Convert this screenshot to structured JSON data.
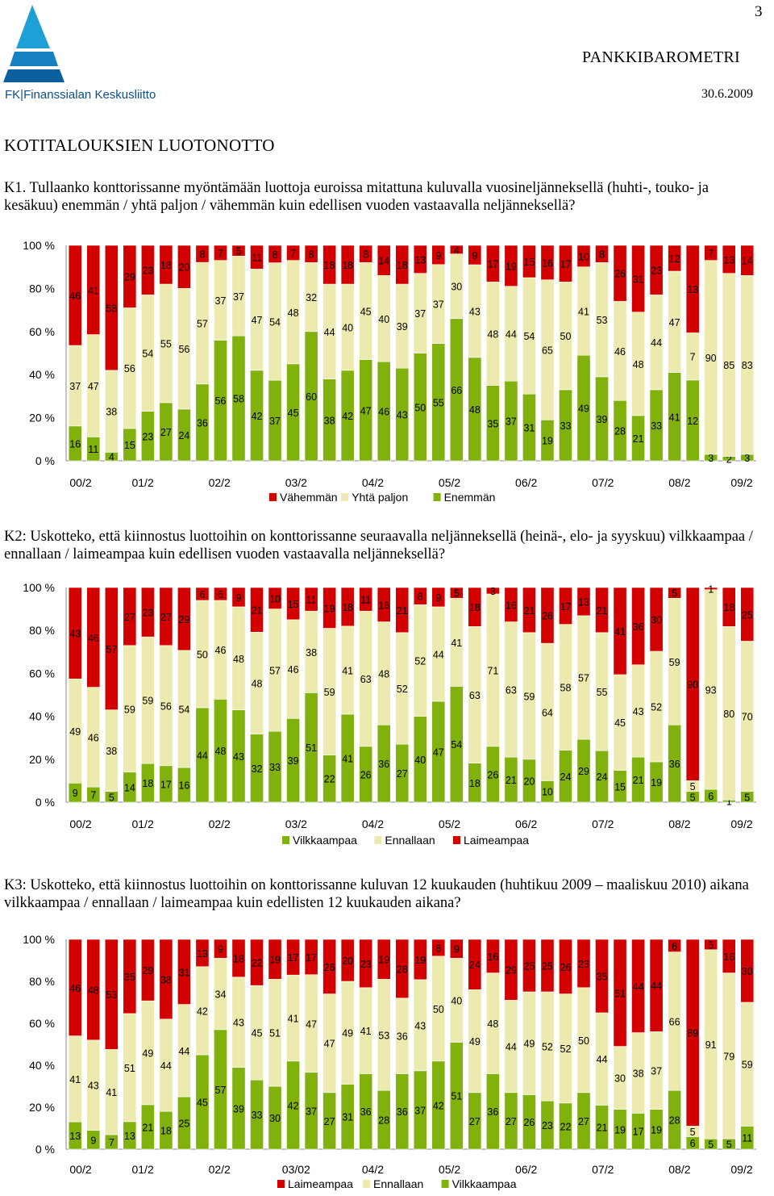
{
  "page": {
    "page_number": "3",
    "brand": "PANKKIBAROMETRI",
    "date": "30.6.2009",
    "logo_text": "FK|Finanssialan Keskusliitto",
    "heading": "KOTITALOUKSIEN LUOTONOTTO",
    "questions": [
      "K1. Tullaanko konttorissanne myöntämään luottoja euroissa mitattuna kuluvalla vuosineljänneksellä (huhti-, touko- ja kesäkuu) enemmän / yhtä paljon / vähemmän kuin edellisen vuoden vastaavalla neljänneksellä?",
      "K2: Uskotteko, että kiinnostus luottoihin on konttorissanne seuraavalla neljänneksellä (heinä-, elo- ja syyskuu) vilkkaampaa / ennallaan / laimeampaa kuin edellisen vuoden vastaavalla neljänneksellä?",
      "K3: Uskotteko, että kiinnostus luottoihin on konttorissanne kuluvan 12 kuukauden (huhtikuu 2009 – maaliskuu 2010) aikana vilkkaampaa / ennallaan / laimeampaa kuin edellisten 12 kuukauden aikana?"
    ]
  },
  "colors": {
    "green": "#80b10c",
    "yellow": "#edeab0",
    "red": "#d30000",
    "axis": "#888888"
  },
  "chart_data": [
    {
      "type": "bar",
      "stacked": true,
      "y_ticks": [
        "0 %",
        "20 %",
        "40 %",
        "60 %",
        "80 %",
        "100 %"
      ],
      "ylim": [
        0,
        100
      ],
      "x_tick_labels": [
        "00/2",
        "01/2",
        "02/2",
        "03/2",
        "04/2",
        "05/2",
        "06/2",
        "07/2",
        "08/2",
        "09/2"
      ],
      "legend": [
        {
          "name": "Vähemmän",
          "color": "red"
        },
        {
          "name": "Yhtä paljon",
          "color": "yellow"
        },
        {
          "name": "Enemmän",
          "color": "green"
        }
      ],
      "stack_order": [
        "green",
        "yellow",
        "red"
      ],
      "values": {
        "green": [
          16,
          11,
          4,
          15,
          23,
          27,
          24,
          36,
          56,
          58,
          42,
          37,
          45,
          60,
          38,
          42,
          47,
          46,
          43,
          50,
          55,
          66,
          48,
          35,
          37,
          31,
          19,
          33,
          49,
          39,
          28,
          21,
          33,
          41,
          12,
          3,
          2,
          3
        ],
        "yellow": [
          37,
          47,
          38,
          56,
          54,
          55,
          56,
          57,
          37,
          37,
          47,
          54,
          48,
          32,
          44,
          40,
          45,
          40,
          39,
          37,
          37,
          30,
          43,
          48,
          44,
          54,
          65,
          50,
          41,
          53,
          46,
          48,
          44,
          47,
          7,
          90,
          85,
          83
        ],
        "red": [
          46,
          41,
          58,
          29,
          23,
          18,
          20,
          8,
          7,
          5,
          11,
          8,
          7,
          8,
          18,
          18,
          8,
          14,
          18,
          13,
          9,
          4,
          9,
          17,
          19,
          15,
          16,
          17,
          10,
          8,
          26,
          31,
          23,
          12,
          13,
          7,
          13,
          14
        ]
      }
    },
    {
      "type": "bar",
      "stacked": true,
      "y_ticks": [
        "0 %",
        "20 %",
        "40 %",
        "60 %",
        "80 %",
        "100 %"
      ],
      "ylim": [
        0,
        100
      ],
      "x_tick_labels": [
        "00/2",
        "01/2",
        "02/2",
        "03/2",
        "04/2",
        "05/2",
        "06/2",
        "07/2",
        "08/2",
        "09/2"
      ],
      "legend": [
        {
          "name": "Vilkkaampaa",
          "color": "green"
        },
        {
          "name": "Ennallaan",
          "color": "yellow"
        },
        {
          "name": "Laimeampaa",
          "color": "red"
        }
      ],
      "stack_order": [
        "green",
        "yellow",
        "red"
      ],
      "values": {
        "green": [
          9,
          7,
          5,
          14,
          18,
          17,
          16,
          44,
          48,
          43,
          32,
          33,
          39,
          51,
          22,
          41,
          26,
          36,
          27,
          40,
          47,
          54,
          18,
          26,
          21,
          20,
          10,
          24,
          29,
          24,
          15,
          21,
          19,
          36,
          5,
          6,
          1,
          5
        ],
        "yellow": [
          49,
          46,
          38,
          59,
          59,
          56,
          54,
          50,
          46,
          48,
          48,
          57,
          46,
          38,
          59,
          41,
          63,
          48,
          52,
          52,
          44,
          41,
          63,
          71,
          63,
          59,
          64,
          58,
          57,
          55,
          45,
          43,
          52,
          59,
          5,
          93,
          80,
          70
        ],
        "red": [
          43,
          46,
          57,
          27,
          23,
          27,
          29,
          6,
          6,
          9,
          21,
          10,
          15,
          11,
          19,
          18,
          11,
          16,
          21,
          8,
          9,
          5,
          18,
          3,
          16,
          21,
          26,
          17,
          13,
          21,
          41,
          36,
          30,
          5,
          90,
          1,
          18,
          25
        ]
      }
    },
    {
      "type": "bar",
      "stacked": true,
      "y_ticks": [
        "0 %",
        "20 %",
        "40 %",
        "60 %",
        "80 %",
        "100 %"
      ],
      "ylim": [
        0,
        100
      ],
      "x_tick_labels": [
        "00/2",
        "01/2",
        "02/2",
        "03/02",
        "04/2",
        "05/2",
        "06/2",
        "07/2",
        "08/2",
        "09/2"
      ],
      "legend": [
        {
          "name": "Laimeampaa",
          "color": "red"
        },
        {
          "name": "Ennallaan",
          "color": "yellow"
        },
        {
          "name": "Vilkkaampaa",
          "color": "green"
        }
      ],
      "stack_order": [
        "green",
        "yellow",
        "red"
      ],
      "values": {
        "green": [
          13,
          9,
          7,
          13,
          21,
          18,
          25,
          45,
          57,
          39,
          33,
          30,
          42,
          37,
          27,
          31,
          36,
          28,
          36,
          37,
          42,
          51,
          27,
          36,
          27,
          26,
          23,
          22,
          27,
          21,
          19,
          17,
          19,
          28,
          6,
          5,
          5,
          11
        ],
        "yellow": [
          41,
          43,
          41,
          51,
          49,
          44,
          44,
          42,
          34,
          43,
          45,
          51,
          41,
          47,
          47,
          49,
          41,
          53,
          36,
          43,
          50,
          40,
          49,
          48,
          44,
          49,
          52,
          52,
          50,
          44,
          30,
          38,
          37,
          66,
          5,
          91,
          79,
          59
        ],
        "red": [
          46,
          48,
          53,
          35,
          29,
          38,
          31,
          13,
          9,
          18,
          22,
          19,
          17,
          17,
          26,
          20,
          23,
          19,
          28,
          19,
          8,
          9,
          24,
          16,
          29,
          25,
          25,
          26,
          23,
          35,
          51,
          44,
          44,
          6,
          89,
          5,
          16,
          30
        ]
      }
    }
  ]
}
